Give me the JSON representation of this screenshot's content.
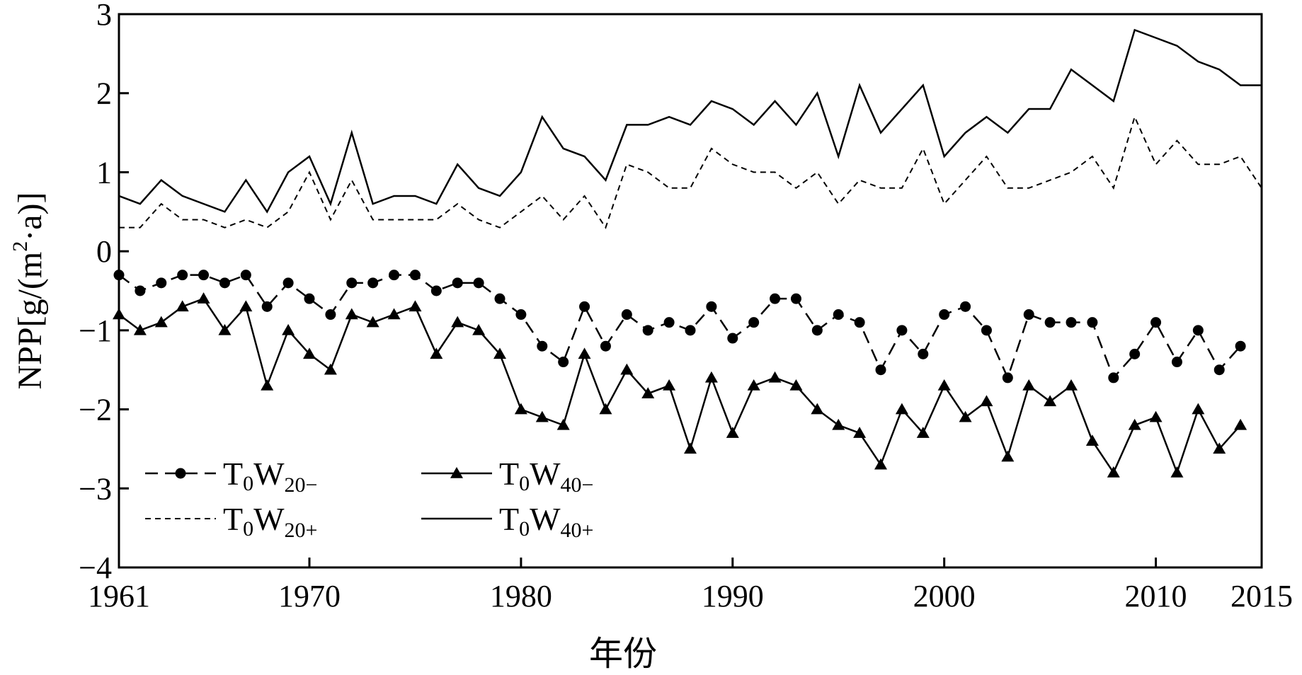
{
  "chart_data": {
    "type": "line",
    "title": "",
    "xlabel": "年份",
    "ylabel": "NPP[g/(m²·a)]",
    "ylabel_parts": {
      "main": "NPP[g/(m",
      "sup": "2",
      "tail": "·a)]"
    },
    "xlim": [
      1961,
      2015
    ],
    "ylim": [
      -4,
      3
    ],
    "x_ticks": [
      1961,
      1970,
      1980,
      1990,
      2000,
      2010,
      2015
    ],
    "x_tick_labels": [
      "1961",
      "1970",
      "1980",
      "1990",
      "2000",
      "2010",
      "2015"
    ],
    "y_ticks": [
      -4,
      -3,
      -2,
      -1,
      0,
      1,
      2,
      3
    ],
    "y_tick_labels": [
      "−4",
      "−3",
      "−2",
      "−1",
      "0",
      "1",
      "2",
      "3"
    ],
    "grid": false,
    "legend_position": "bottom-left",
    "x": [
      1961,
      1962,
      1963,
      1964,
      1965,
      1966,
      1967,
      1968,
      1969,
      1970,
      1971,
      1972,
      1973,
      1974,
      1975,
      1976,
      1977,
      1978,
      1979,
      1980,
      1981,
      1982,
      1983,
      1984,
      1985,
      1986,
      1987,
      1988,
      1989,
      1990,
      1991,
      1992,
      1993,
      1994,
      1995,
      1996,
      1997,
      1998,
      1999,
      2000,
      2001,
      2002,
      2003,
      2004,
      2005,
      2006,
      2007,
      2008,
      2009,
      2010,
      2011,
      2012,
      2013,
      2014,
      2015
    ],
    "series": [
      {
        "name": "T0W20−",
        "label": {
          "main": "T",
          "sub1": "0",
          "mid": "W",
          "sub2": "20−"
        },
        "style": "dashed-circle",
        "color": "#000000",
        "values": [
          -0.3,
          -0.5,
          -0.4,
          -0.3,
          -0.3,
          -0.4,
          -0.3,
          -0.7,
          -0.4,
          -0.6,
          -0.8,
          -0.4,
          -0.4,
          -0.3,
          -0.3,
          -0.5,
          -0.4,
          -0.4,
          -0.6,
          -0.8,
          -1.2,
          -1.4,
          -0.7,
          -1.2,
          -0.8,
          -1.0,
          -0.9,
          -1.0,
          -0.7,
          -1.1,
          -0.9,
          -0.6,
          -0.6,
          -1.0,
          -0.8,
          -0.9,
          -1.5,
          -1.0,
          -1.3,
          -0.8,
          -0.7,
          -1.0,
          -1.6,
          -0.8,
          -0.9,
          -0.9,
          -0.9,
          -1.6,
          -1.3,
          -0.9,
          -1.4,
          -1.0,
          -1.5,
          -1.2,
          null
        ]
      },
      {
        "name": "T0W40−",
        "label": {
          "main": "T",
          "sub1": "0",
          "mid": "W",
          "sub2": "40−"
        },
        "style": "solid-triangle",
        "color": "#000000",
        "values": [
          -0.8,
          -1.0,
          -0.9,
          -0.7,
          -0.6,
          -1.0,
          -0.7,
          -1.7,
          -1.0,
          -1.3,
          -1.5,
          -0.8,
          -0.9,
          -0.8,
          -0.7,
          -1.3,
          -0.9,
          -1.0,
          -1.3,
          -2.0,
          -2.1,
          -2.2,
          -1.3,
          -2.0,
          -1.5,
          -1.8,
          -1.7,
          -2.5,
          -1.6,
          -2.3,
          -1.7,
          -1.6,
          -1.7,
          -2.0,
          -2.2,
          -2.3,
          -2.7,
          -2.0,
          -2.3,
          -1.7,
          -2.1,
          -1.9,
          -2.6,
          -1.7,
          -1.9,
          -1.7,
          -2.4,
          -2.8,
          -2.2,
          -2.1,
          -2.8,
          -2.0,
          -2.5,
          -2.2,
          null
        ]
      },
      {
        "name": "T0W20+",
        "label": {
          "main": "T",
          "sub1": "0",
          "mid": "W",
          "sub2": "20+"
        },
        "style": "dashed",
        "color": "#000000",
        "values": [
          0.3,
          0.3,
          0.6,
          0.4,
          0.4,
          0.3,
          0.4,
          0.3,
          0.5,
          1.0,
          0.4,
          0.9,
          0.4,
          0.4,
          0.4,
          0.4,
          0.6,
          0.4,
          0.3,
          0.5,
          0.7,
          0.4,
          0.7,
          0.3,
          1.1,
          1.0,
          0.8,
          0.8,
          1.3,
          1.1,
          1.0,
          1.0,
          0.8,
          1.0,
          0.6,
          0.9,
          0.8,
          0.8,
          1.3,
          0.6,
          0.9,
          1.2,
          0.8,
          0.8,
          0.9,
          1.0,
          1.2,
          0.8,
          1.7,
          1.1,
          1.4,
          1.1,
          1.1,
          1.2,
          0.8
        ]
      },
      {
        "name": "T0W40+",
        "label": {
          "main": "T",
          "sub1": "0",
          "mid": "W",
          "sub2": "40+"
        },
        "style": "solid",
        "color": "#000000",
        "values": [
          0.7,
          0.6,
          0.9,
          0.7,
          0.6,
          0.5,
          0.9,
          0.5,
          1.0,
          1.2,
          0.6,
          1.5,
          0.6,
          0.7,
          0.7,
          0.6,
          1.1,
          0.8,
          0.7,
          1.0,
          1.7,
          1.3,
          1.2,
          0.9,
          1.6,
          1.6,
          1.7,
          1.6,
          1.9,
          1.8,
          1.6,
          1.9,
          1.6,
          2.0,
          1.2,
          2.1,
          1.5,
          1.8,
          2.1,
          1.2,
          1.5,
          1.7,
          1.5,
          1.8,
          1.8,
          2.3,
          2.1,
          1.9,
          2.8,
          2.7,
          2.6,
          2.4,
          2.3,
          2.1,
          2.1
        ]
      }
    ]
  }
}
